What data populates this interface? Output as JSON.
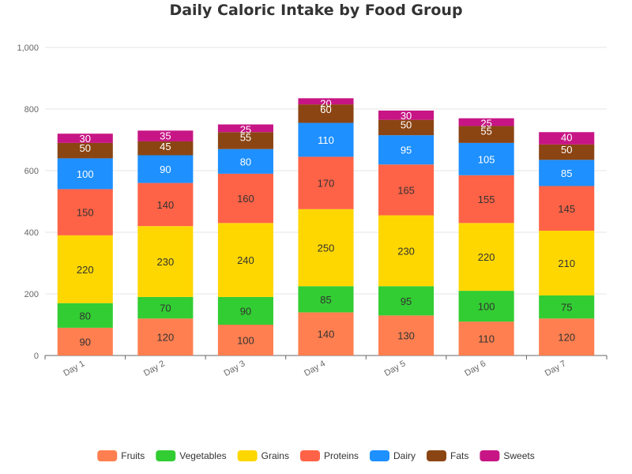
{
  "chart_data": {
    "type": "bar",
    "stacked": true,
    "title": "Daily Caloric Intake by Food Group",
    "categories": [
      "Day 1",
      "Day 2",
      "Day 3",
      "Day 4",
      "Day 5",
      "Day 6",
      "Day 7"
    ],
    "ylim": [
      0,
      1000
    ],
    "yticks": [
      0,
      200,
      400,
      600,
      800,
      1000
    ],
    "ytick_labels": [
      "0",
      "200",
      "400",
      "600",
      "800",
      "1,000"
    ],
    "grid": true,
    "legend_position": "bottom",
    "series": [
      {
        "name": "Fruits",
        "color": "#FF7F50",
        "values": [
          90,
          120,
          100,
          140,
          130,
          110,
          120
        ]
      },
      {
        "name": "Vegetables",
        "color": "#32CD32",
        "values": [
          80,
          70,
          90,
          85,
          95,
          100,
          75
        ]
      },
      {
        "name": "Grains",
        "color": "#FFD700",
        "values": [
          220,
          230,
          240,
          250,
          230,
          220,
          210
        ]
      },
      {
        "name": "Proteins",
        "color": "#FF6347",
        "values": [
          150,
          140,
          160,
          170,
          165,
          155,
          145
        ]
      },
      {
        "name": "Dairy",
        "color": "#1E90FF",
        "values": [
          100,
          90,
          80,
          110,
          95,
          105,
          85
        ]
      },
      {
        "name": "Fats",
        "color": "#8B4513",
        "values": [
          50,
          45,
          55,
          60,
          50,
          55,
          50
        ]
      },
      {
        "name": "Sweets",
        "color": "#C71585",
        "values": [
          30,
          35,
          25,
          20,
          30,
          25,
          40
        ]
      }
    ]
  }
}
